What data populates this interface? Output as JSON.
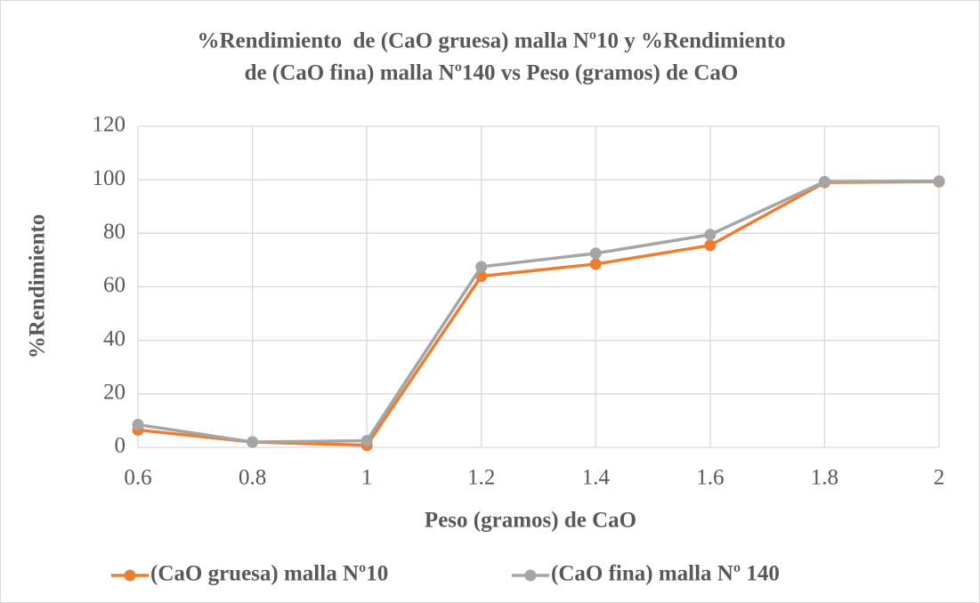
{
  "chart_data": {
    "type": "line",
    "title": [
      "%Rendimiento  de (CaO gruesa) malla Nº10 y %Rendimiento",
      "de (CaO fina) malla Nº140 vs Peso (gramos) de CaO"
    ],
    "x_label": "Peso (gramos) de CaO",
    "y_label": "%Rendimiento",
    "x": [
      0.6,
      0.8,
      1,
      1.2,
      1.4,
      1.6,
      1.8,
      2
    ],
    "xlim": [
      0.6,
      2
    ],
    "xticks": [
      0.6,
      0.8,
      1,
      1.2,
      1.4,
      1.6,
      1.8,
      2
    ],
    "ylim": [
      0,
      120
    ],
    "yticks": [
      0,
      20,
      40,
      60,
      80,
      100,
      120
    ],
    "grid": true,
    "legend": "bottom",
    "series": [
      {
        "name": "(CaO gruesa) malla Nº10",
        "color": "#ed7d31",
        "values": [
          6.5,
          2,
          0.8,
          64,
          68.5,
          75.5,
          99,
          99.3
        ]
      },
      {
        "name": "(CaO fina) malla Nº 140",
        "color": "#a5a5a5",
        "values": [
          8.5,
          2,
          2.5,
          67.5,
          72.5,
          79.5,
          99.3,
          99.5
        ]
      }
    ]
  }
}
